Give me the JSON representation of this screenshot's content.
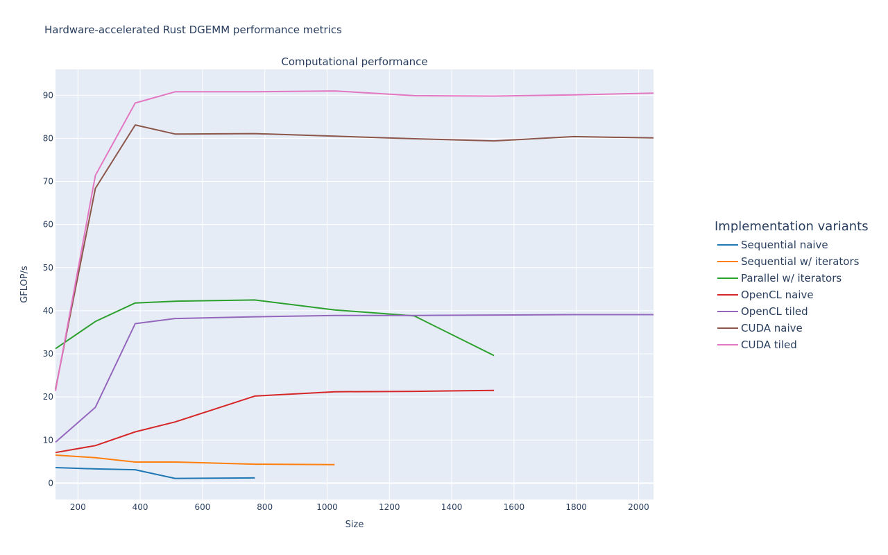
{
  "page": {
    "title": "Hardware-accelerated Rust DGEMM performance metrics"
  },
  "chart_data": {
    "type": "line",
    "title": "Computational performance",
    "xlabel": "Size",
    "ylabel": "GFLOP/s",
    "xlim": [
      128,
      2048
    ],
    "ylim": [
      -3.8,
      96
    ],
    "x_ticks": [
      200,
      400,
      600,
      800,
      1000,
      1200,
      1400,
      1600,
      1800,
      2000
    ],
    "y_ticks": [
      0,
      10,
      20,
      30,
      40,
      50,
      60,
      70,
      80,
      90
    ],
    "grid": true,
    "legend_title": "Implementation variants",
    "legend_position": "right",
    "series": [
      {
        "name": "Sequential naive",
        "color": "#1f77b4",
        "x": [
          128,
          256,
          384,
          512,
          768
        ],
        "y": [
          3.6,
          3.3,
          3.1,
          1.1,
          1.2
        ]
      },
      {
        "name": "Sequential w/ iterators",
        "color": "#ff7f0e",
        "x": [
          128,
          256,
          384,
          512,
          768,
          1024
        ],
        "y": [
          6.5,
          5.9,
          4.9,
          4.9,
          4.4,
          4.3
        ]
      },
      {
        "name": "Parallel w/ iterators",
        "color": "#2ca02c",
        "x": [
          128,
          256,
          384,
          512,
          768,
          1024,
          1280,
          1536
        ],
        "y": [
          31.2,
          37.5,
          41.8,
          42.2,
          42.5,
          40.2,
          38.8,
          29.6
        ]
      },
      {
        "name": "OpenCL naive",
        "color": "#d62728",
        "x": [
          128,
          256,
          384,
          512,
          768,
          1024,
          1280,
          1536
        ],
        "y": [
          7.1,
          8.7,
          11.9,
          14.2,
          20.2,
          21.2,
          21.3,
          21.5
        ]
      },
      {
        "name": "OpenCL tiled",
        "color": "#9467bd",
        "x": [
          128,
          256,
          384,
          512,
          768,
          1024,
          1280,
          1536,
          1792,
          2048
        ],
        "y": [
          9.5,
          17.6,
          37.0,
          38.2,
          38.6,
          38.9,
          38.9,
          39.0,
          39.1,
          39.1
        ]
      },
      {
        "name": "CUDA naive",
        "color": "#8c564b",
        "x": [
          128,
          256,
          384,
          512,
          768,
          1024,
          1280,
          1536,
          1792,
          2048
        ],
        "y": [
          21.8,
          68.4,
          83.1,
          81.0,
          81.1,
          80.5,
          79.9,
          79.4,
          80.4,
          80.1
        ]
      },
      {
        "name": "CUDA tiled",
        "color": "#e377c2",
        "x": [
          128,
          256,
          384,
          512,
          768,
          1024,
          1280,
          1536,
          1792,
          2048
        ],
        "y": [
          21.4,
          71.4,
          88.2,
          90.8,
          90.8,
          91.0,
          89.9,
          89.8,
          90.1,
          90.5
        ]
      }
    ]
  }
}
